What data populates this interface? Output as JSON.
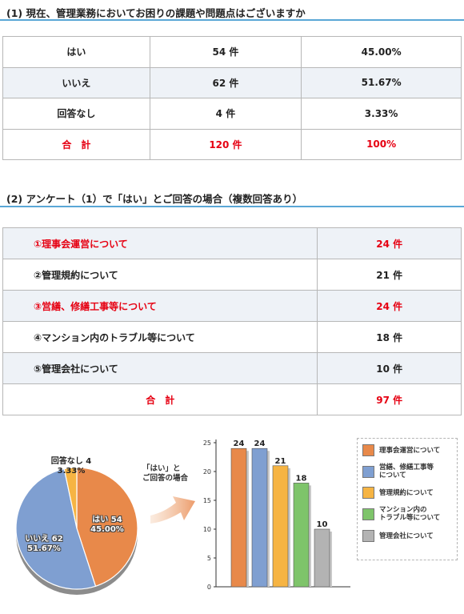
{
  "section1": {
    "title": "(1) 現在、管理業務においてお困りの課題や問題点はございますか",
    "rows": [
      {
        "label": "はい",
        "count": "54 件",
        "percent": "45.00%"
      },
      {
        "label": "いいえ",
        "count": "62 件",
        "percent": "51.67%"
      },
      {
        "label": "回答なし",
        "count": "4 件",
        "percent": "3.33%"
      }
    ],
    "total": {
      "label": "合　計",
      "count": "120 件",
      "percent": "100%"
    }
  },
  "section2": {
    "title": "(2) アンケート（1）で「はい」とご回答の場合（複数回答あり）",
    "rows": [
      {
        "label": "①理事会運営について",
        "count": "24 件",
        "highlight": true
      },
      {
        "label": "②管理規約について",
        "count": "21 件",
        "highlight": false
      },
      {
        "label": "③営繕、修繕工事等について",
        "count": "24 件",
        "highlight": true
      },
      {
        "label": "④マンション内のトラブル等について",
        "count": "18 件",
        "highlight": false
      },
      {
        "label": "⑤管理会社について",
        "count": "10 件",
        "highlight": false
      }
    ],
    "total": {
      "label": "合　計",
      "count": "97 件"
    }
  },
  "callout": {
    "line1": "「はい」と",
    "line2": "ご回答の場合"
  },
  "colors": {
    "accent_red": "#e60012",
    "rule_blue": "#5aa7d6",
    "orange": "#e8894a",
    "blue": "#7f9fd1",
    "yellow": "#f6b443",
    "green": "#7ec46a",
    "gray": "#b3b3b3"
  },
  "chart_data": [
    {
      "type": "pie",
      "slices": [
        {
          "name": "はい",
          "value": 54,
          "percent": "45.00%",
          "line1": "はい 54",
          "line2": "45.00%",
          "color": "#e8894a"
        },
        {
          "name": "いいえ",
          "value": 62,
          "percent": "51.67%",
          "line1": "いいえ 62",
          "line2": "51.67%",
          "color": "#7f9fd1"
        },
        {
          "name": "回答なし",
          "value": 4,
          "percent": "3.33%",
          "line1": "回答なし 4",
          "line2": "3.33%",
          "color": "#f6b443"
        }
      ]
    },
    {
      "type": "bar",
      "categories": [
        "理事会運営について",
        "営繕、修繕工事等について",
        "管理規約について",
        "マンション内のトラブル等について",
        "管理会社について"
      ],
      "values": [
        24,
        24,
        21,
        18,
        10
      ],
      "colors": [
        "#e8894a",
        "#7f9fd1",
        "#f6b443",
        "#7ec46a",
        "#b3b3b3"
      ],
      "ylim": [
        0,
        25
      ],
      "yticks": [
        "0",
        "5",
        "10",
        "15",
        "20",
        "25"
      ],
      "legend": [
        {
          "line1": "理事会運営について",
          "line2": "",
          "color": "#e8894a"
        },
        {
          "line1": "営繕、修繕工事等",
          "line2": "について",
          "color": "#7f9fd1"
        },
        {
          "line1": "管理規約について",
          "line2": "",
          "color": "#f6b443"
        },
        {
          "line1": "マンション内の",
          "line2": "トラブル等について",
          "color": "#7ec46a"
        },
        {
          "line1": "管理会社について",
          "line2": "",
          "color": "#b3b3b3"
        }
      ],
      "legend_position": "right"
    }
  ]
}
